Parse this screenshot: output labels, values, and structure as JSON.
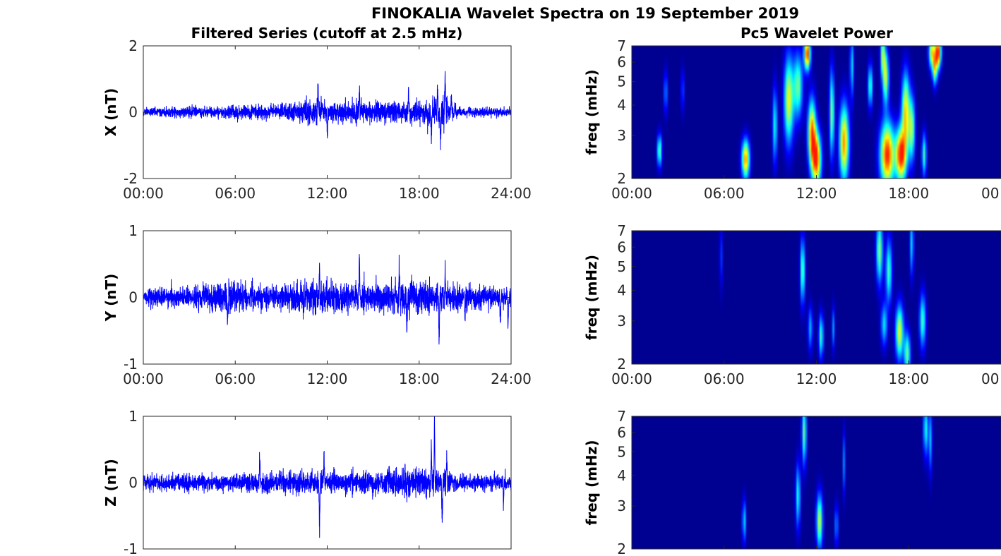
{
  "figure": {
    "title": "FINOKALIA Wavelet Spectra on 19 September 2019",
    "left_column_title": "Filtered Series (cutoff at 2.5 mHz)",
    "right_column_title": "Pc5 Wavelet Power"
  },
  "colors": {
    "series_line": "#0000ff",
    "axis": "#262626",
    "colormap": "jet",
    "spectrogram_background": "#00008f"
  },
  "chart_data": [
    {
      "type": "line",
      "id": "x-series",
      "title": "Filtered Series (cutoff at 2.5 mHz)",
      "xlabel": "",
      "ylabel": "X (nT)",
      "xlim_hours": [
        0,
        24
      ],
      "ylim": [
        -2,
        2
      ],
      "yticks": [
        -2,
        0,
        2
      ],
      "ytick_labels": [
        "-2",
        "0",
        "2"
      ],
      "xtick_labels": [
        "00:00",
        "06:00",
        "12:00",
        "18:00",
        "24:00"
      ],
      "series": [
        {
          "noise_amplitude_nT": [
            [
              0,
              0.12
            ],
            [
              3,
              0.15
            ],
            [
              6,
              0.18
            ],
            [
              9,
              0.2
            ],
            [
              11,
              0.35
            ],
            [
              12,
              0.28
            ],
            [
              14,
              0.3
            ],
            [
              16,
              0.28
            ],
            [
              18,
              0.3
            ],
            [
              19.5,
              0.45
            ],
            [
              20.5,
              0.12
            ],
            [
              24,
              0.12
            ]
          ],
          "spikes": [
            [
              7.6,
              0.65
            ],
            [
              7.6,
              -0.7
            ],
            [
              11.4,
              0.95
            ],
            [
              12,
              -0.75
            ],
            [
              14.1,
              0.75
            ],
            [
              17.3,
              0.6
            ],
            [
              18.8,
              -0.9
            ],
            [
              19.2,
              0.85
            ],
            [
              19.4,
              -1.0
            ],
            [
              19.7,
              1.3
            ],
            [
              20.1,
              0.6
            ]
          ]
        }
      ]
    },
    {
      "type": "line",
      "id": "y-series",
      "xlabel": "",
      "ylabel": "Y (nT)",
      "xlim_hours": [
        0,
        24
      ],
      "ylim": [
        -1,
        1
      ],
      "yticks": [
        -1,
        0,
        1
      ],
      "ytick_labels": [
        "-1",
        "0",
        "1"
      ],
      "xtick_labels": [
        "00:00",
        "06:00",
        "12:00",
        "18:00",
        "24:00"
      ],
      "series": [
        {
          "noise_amplitude_nT": [
            [
              0,
              0.12
            ],
            [
              3,
              0.14
            ],
            [
              5,
              0.2
            ],
            [
              6,
              0.22
            ],
            [
              8,
              0.15
            ],
            [
              11,
              0.22
            ],
            [
              12,
              0.2
            ],
            [
              15,
              0.18
            ],
            [
              17,
              0.22
            ],
            [
              18.5,
              0.22
            ],
            [
              20,
              0.18
            ],
            [
              24,
              0.12
            ]
          ],
          "spikes": [
            [
              5.5,
              -0.45
            ],
            [
              11.5,
              0.45
            ],
            [
              14.1,
              0.58
            ],
            [
              16.7,
              0.45
            ],
            [
              17.2,
              -0.5
            ],
            [
              19.3,
              -0.75
            ],
            [
              19.7,
              0.45
            ],
            [
              21,
              -0.3
            ],
            [
              23.3,
              -0.5
            ],
            [
              23.8,
              -0.45
            ]
          ]
        }
      ]
    },
    {
      "type": "line",
      "id": "z-series",
      "xlabel": "",
      "ylabel": "Z (nT)",
      "xlim_hours": [
        0,
        24
      ],
      "ylim": [
        -1,
        1
      ],
      "yticks": [
        -1,
        0,
        1
      ],
      "ytick_labels": [
        "-1",
        "0",
        "1"
      ],
      "xtick_labels": [],
      "series": [
        {
          "noise_amplitude_nT": [
            [
              0,
              0.1
            ],
            [
              6,
              0.12
            ],
            [
              10,
              0.15
            ],
            [
              12,
              0.15
            ],
            [
              15,
              0.15
            ],
            [
              18,
              0.2
            ],
            [
              19.5,
              0.2
            ],
            [
              20.5,
              0.1
            ],
            [
              24,
              0.1
            ]
          ],
          "spikes": [
            [
              7.6,
              0.4
            ],
            [
              11.5,
              -0.72
            ],
            [
              11.8,
              0.45
            ],
            [
              18.8,
              0.55
            ],
            [
              19,
              0.92
            ],
            [
              19.5,
              -0.72
            ],
            [
              19.8,
              0.38
            ],
            [
              23.5,
              -0.35
            ]
          ]
        }
      ]
    },
    {
      "type": "heatmap",
      "id": "x-power",
      "title": "Pc5 Wavelet Power",
      "xlabel": "",
      "ylabel": "freq (mHz)",
      "xlim_hours": [
        0,
        24
      ],
      "ylim": [
        2,
        7
      ],
      "yscale": "log",
      "yticks": [
        2,
        3,
        4,
        5,
        6,
        7
      ],
      "ytick_labels": [
        "2",
        "3",
        "4",
        "5",
        "6",
        "7"
      ],
      "xtick_labels": [
        "00:00",
        "06:00",
        "12:00",
        "18:00",
        "00"
      ],
      "blobs": [
        [
          1.8,
          2.6,
          0.15,
          0.15,
          0.55
        ],
        [
          2.2,
          4.5,
          0.12,
          0.2,
          0.3
        ],
        [
          3.3,
          4.6,
          0.1,
          0.2,
          0.25
        ],
        [
          7.4,
          2.4,
          0.25,
          0.18,
          0.85
        ],
        [
          9.3,
          3.3,
          0.15,
          0.35,
          0.45
        ],
        [
          10.2,
          4.2,
          0.3,
          0.4,
          0.7
        ],
        [
          10.8,
          4.8,
          0.3,
          0.3,
          0.55
        ],
        [
          11.4,
          6.5,
          0.2,
          0.15,
          0.98
        ],
        [
          12,
          2.4,
          0.3,
          0.25,
          0.95
        ],
        [
          11.7,
          3.1,
          0.25,
          0.3,
          0.85
        ],
        [
          13,
          3.7,
          0.15,
          0.4,
          0.6
        ],
        [
          13.8,
          2.8,
          0.3,
          0.35,
          0.85
        ],
        [
          14.3,
          5.8,
          0.12,
          0.3,
          0.4
        ],
        [
          15.5,
          4.8,
          0.15,
          0.2,
          0.5
        ],
        [
          16.6,
          2.5,
          0.45,
          0.3,
          0.98
        ],
        [
          17.5,
          2.5,
          0.35,
          0.25,
          1.0
        ],
        [
          16.5,
          5.2,
          0.2,
          0.25,
          0.65
        ],
        [
          16.3,
          6.5,
          0.15,
          0.2,
          0.55
        ],
        [
          17.8,
          3.8,
          0.25,
          0.35,
          0.75
        ],
        [
          18.2,
          3.2,
          0.2,
          0.3,
          0.6
        ],
        [
          19,
          2.5,
          0.15,
          0.2,
          0.5
        ],
        [
          19.5,
          6.6,
          0.2,
          0.15,
          0.7
        ],
        [
          19.9,
          6.6,
          0.2,
          0.15,
          1.0
        ],
        [
          19.7,
          5.6,
          0.15,
          0.15,
          0.6
        ]
      ]
    },
    {
      "type": "heatmap",
      "id": "y-power",
      "xlabel": "",
      "ylabel": "freq (mHz)",
      "xlim_hours": [
        0,
        24
      ],
      "ylim": [
        2,
        7
      ],
      "yscale": "log",
      "yticks": [
        2,
        3,
        4,
        5,
        6,
        7
      ],
      "ytick_labels": [
        "2",
        "3",
        "4",
        "5",
        "6",
        "7"
      ],
      "xtick_labels": [
        "00:00",
        "06:00",
        "12:00",
        "18:00",
        "00"
      ],
      "blobs": [
        [
          5.8,
          5.5,
          0.1,
          0.3,
          0.2
        ],
        [
          11.1,
          4.8,
          0.15,
          0.3,
          0.55
        ],
        [
          11.6,
          2.8,
          0.15,
          0.2,
          0.35
        ],
        [
          12.3,
          2.6,
          0.15,
          0.2,
          0.5
        ],
        [
          13.1,
          2.8,
          0.1,
          0.2,
          0.3
        ],
        [
          16.1,
          5.8,
          0.2,
          0.3,
          0.6
        ],
        [
          16.7,
          4.8,
          0.2,
          0.3,
          0.5
        ],
        [
          16.4,
          2.9,
          0.2,
          0.2,
          0.4
        ],
        [
          17.4,
          2.7,
          0.25,
          0.25,
          0.7
        ],
        [
          17.9,
          2.2,
          0.2,
          0.2,
          0.55
        ],
        [
          18.9,
          3.0,
          0.2,
          0.25,
          0.5
        ],
        [
          18.2,
          6.2,
          0.12,
          0.3,
          0.4
        ]
      ]
    },
    {
      "type": "heatmap",
      "id": "z-power",
      "xlabel": "",
      "ylabel": "freq (mHz)",
      "xlim_hours": [
        0,
        24
      ],
      "ylim": [
        2,
        7
      ],
      "yscale": "log",
      "yticks": [
        2,
        3,
        4,
        5,
        6,
        7
      ],
      "ytick_labels": [
        "2",
        "3",
        "4",
        "5",
        "6",
        "7"
      ],
      "xtick_labels": [],
      "blobs": [
        [
          7.3,
          2.6,
          0.12,
          0.2,
          0.4
        ],
        [
          10.8,
          3.3,
          0.15,
          0.3,
          0.45
        ],
        [
          11.2,
          6.0,
          0.15,
          0.3,
          0.55
        ],
        [
          12.2,
          2.6,
          0.2,
          0.25,
          0.65
        ],
        [
          13.3,
          2.5,
          0.1,
          0.2,
          0.35
        ],
        [
          13.8,
          4.5,
          0.08,
          0.3,
          0.3
        ],
        [
          19.1,
          6.2,
          0.15,
          0.25,
          0.45
        ],
        [
          19.4,
          5.6,
          0.12,
          0.3,
          0.35
        ]
      ]
    }
  ]
}
